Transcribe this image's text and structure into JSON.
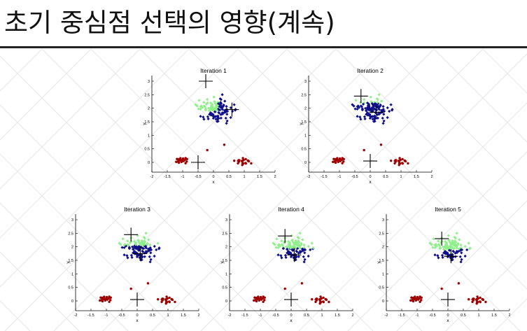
{
  "slide": {
    "title": "초기 중심점 선택의 영향(계속)"
  },
  "colors": {
    "cluster_top": "#8ff08a",
    "cluster_mid": "#10108a",
    "cluster_bottom": "#a00000",
    "centroid": "#000000",
    "background_pattern": "#e6e6e6"
  },
  "chart_data": [
    {
      "type": "scatter",
      "title": "Iteration 1",
      "xlabel": "x",
      "ylabel": "y",
      "xlim": [
        -2,
        2
      ],
      "ylim": [
        0,
        3
      ],
      "xticks": [
        "-2",
        "-1.5",
        "-1",
        "-0.5",
        "0",
        "0.5",
        "1",
        "1.5",
        "2"
      ],
      "yticks": [
        "0",
        "0.5",
        "1",
        "1.5",
        "2",
        "2.5",
        "3"
      ],
      "centroids": [
        {
          "x": -0.25,
          "y": 3.0
        },
        {
          "x": 0.6,
          "y": 1.95
        },
        {
          "x": -0.5,
          "y": 0.0
        }
      ],
      "assignment_split_x": 0.15
    },
    {
      "type": "scatter",
      "title": "Iteration 2",
      "xlabel": "x",
      "ylabel": "y",
      "xlim": [
        -2,
        2
      ],
      "ylim": [
        0,
        3
      ],
      "xticks": [
        "-2",
        "-1.5",
        "-1",
        "-0.5",
        "0",
        "0.5",
        "1",
        "1.5",
        "2"
      ],
      "yticks": [
        "0",
        "0.5",
        "1",
        "1.5",
        "2",
        "2.5",
        "3"
      ],
      "centroids": [
        {
          "x": -0.3,
          "y": 2.45
        },
        {
          "x": 0.2,
          "y": 1.85
        },
        {
          "x": 0.0,
          "y": 0.05
        }
      ],
      "assignment_split_y": 2.2
    },
    {
      "type": "scatter",
      "title": "Iteration 3",
      "xlabel": "x",
      "ylabel": "y",
      "xlim": [
        -2,
        2
      ],
      "ylim": [
        0,
        3
      ],
      "xticks": [
        "-2",
        "-1.5",
        "-1",
        "-0.5",
        "0",
        "0.5",
        "1",
        "1.5",
        "2"
      ],
      "yticks": [
        "0",
        "0.5",
        "1",
        "1.5",
        "2",
        "2.5",
        "3"
      ],
      "centroids": [
        {
          "x": -0.2,
          "y": 2.45
        },
        {
          "x": 0.1,
          "y": 1.75
        },
        {
          "x": 0.0,
          "y": 0.05
        }
      ],
      "assignment_split_y": 2.05
    },
    {
      "type": "scatter",
      "title": "Iteration 4",
      "xlabel": "x",
      "ylabel": "y",
      "xlim": [
        -2,
        2
      ],
      "ylim": [
        0,
        3
      ],
      "xticks": [
        "-2",
        "-1.5",
        "-1",
        "-0.5",
        "0",
        "0.5",
        "1",
        "1.5",
        "2"
      ],
      "yticks": [
        "0",
        "0.5",
        "1",
        "1.5",
        "2",
        "2.5",
        "3"
      ],
      "centroids": [
        {
          "x": -0.2,
          "y": 2.4
        },
        {
          "x": 0.1,
          "y": 1.7
        },
        {
          "x": 0.0,
          "y": 0.05
        }
      ],
      "assignment_split_y": 1.95
    },
    {
      "type": "scatter",
      "title": "Iteration 5",
      "xlabel": "x",
      "ylabel": "y",
      "xlim": [
        -2,
        2
      ],
      "ylim": [
        0,
        3
      ],
      "xticks": [
        "-2",
        "-1.5",
        "-1",
        "-0.5",
        "0",
        "0.5",
        "1",
        "1.5",
        "2"
      ],
      "yticks": [
        "0",
        "0.5",
        "1",
        "1.5",
        "2",
        "2.5",
        "3"
      ],
      "centroids": [
        {
          "x": -0.2,
          "y": 2.3
        },
        {
          "x": 0.1,
          "y": 1.65
        },
        {
          "x": 0.0,
          "y": 0.05
        }
      ],
      "assignment_split_y": 1.9
    }
  ]
}
